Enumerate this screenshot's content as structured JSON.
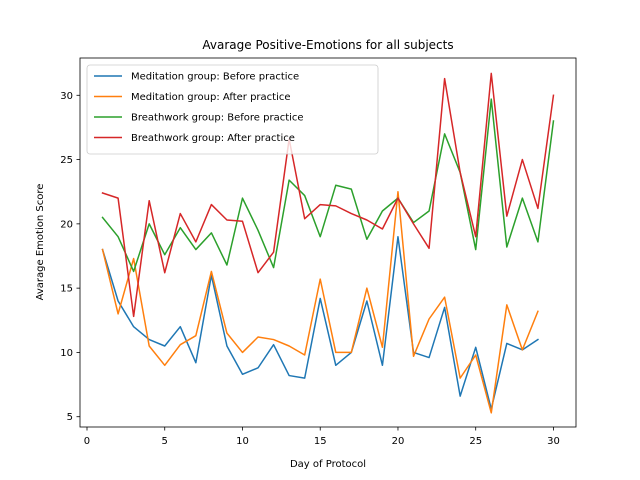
{
  "chart_data": {
    "type": "line",
    "title": "Avarage Positive-Emotions for all subjects",
    "xlabel": "Day of Protocol",
    "ylabel": "Avarage Emotion Score",
    "xlim": [
      -0.45,
      31.45
    ],
    "ylim": [
      4.2,
      32.9
    ],
    "xticks": [
      0,
      5,
      10,
      15,
      20,
      25,
      30
    ],
    "yticks": [
      5,
      10,
      15,
      20,
      25,
      30
    ],
    "grid": false,
    "legend": "top-left",
    "series": [
      {
        "name": "Meditation group: Before practice",
        "color": "#1f77b4",
        "x": [
          1,
          2,
          3,
          4,
          5,
          6,
          7,
          8,
          9,
          10,
          11,
          12,
          13,
          14,
          15,
          16,
          17,
          18,
          19,
          20,
          21,
          22,
          23,
          24,
          25,
          26,
          27,
          28,
          29
        ],
        "y": [
          18.0,
          14.0,
          12.0,
          11.0,
          10.5,
          12.0,
          9.2,
          16.0,
          10.5,
          8.3,
          8.8,
          10.6,
          8.2,
          8.0,
          14.2,
          9.0,
          10.0,
          14.0,
          9.0,
          19.0,
          10.0,
          9.6,
          13.5,
          6.6,
          10.4,
          5.6,
          10.7,
          10.2,
          11.0
        ]
      },
      {
        "name": "Meditation group: After practice",
        "color": "#ff7f0e",
        "x": [
          1,
          2,
          3,
          4,
          5,
          6,
          7,
          8,
          9,
          10,
          11,
          12,
          13,
          14,
          15,
          16,
          17,
          18,
          19,
          20,
          21,
          22,
          23,
          24,
          25,
          26,
          27,
          28,
          29
        ],
        "y": [
          18.0,
          13.0,
          17.3,
          10.5,
          9.0,
          10.6,
          11.3,
          16.3,
          11.5,
          10.0,
          11.2,
          11.0,
          10.5,
          9.8,
          15.7,
          10.0,
          10.0,
          15.0,
          10.4,
          22.5,
          9.7,
          12.6,
          14.3,
          8.0,
          9.8,
          5.3,
          13.7,
          10.2,
          13.2
        ]
      },
      {
        "name": "Breathwork group: Before practice",
        "color": "#2ca02c",
        "x": [
          1,
          2,
          3,
          4,
          5,
          6,
          7,
          8,
          9,
          10,
          11,
          12,
          13,
          14,
          15,
          16,
          17,
          18,
          19,
          20,
          21,
          22,
          23,
          24,
          25,
          26,
          27,
          28,
          29,
          30
        ],
        "y": [
          20.5,
          19.0,
          16.3,
          20.0,
          17.6,
          19.7,
          18.0,
          19.3,
          16.8,
          22.0,
          19.5,
          16.6,
          23.4,
          22.2,
          19.0,
          23.0,
          22.7,
          18.8,
          21.0,
          22.0,
          20.1,
          21.0,
          27.0,
          24.0,
          18.0,
          29.7,
          18.2,
          22.0,
          18.6,
          28.0
        ]
      },
      {
        "name": "Breathwork group: After practice",
        "color": "#d62728",
        "x": [
          1,
          2,
          3,
          4,
          5,
          6,
          7,
          8,
          9,
          10,
          11,
          12,
          13,
          14,
          15,
          16,
          17,
          18,
          19,
          20,
          21,
          22,
          23,
          24,
          25,
          26,
          27,
          28,
          29,
          30
        ],
        "y": [
          22.4,
          22.0,
          12.8,
          21.8,
          16.2,
          20.8,
          18.6,
          21.5,
          20.3,
          20.2,
          16.2,
          17.8,
          26.6,
          20.4,
          21.5,
          21.4,
          20.8,
          20.3,
          19.6,
          22.0,
          20.0,
          18.1,
          31.3,
          24.0,
          19.0,
          31.7,
          20.6,
          25.0,
          21.2,
          30.0
        ]
      }
    ]
  }
}
